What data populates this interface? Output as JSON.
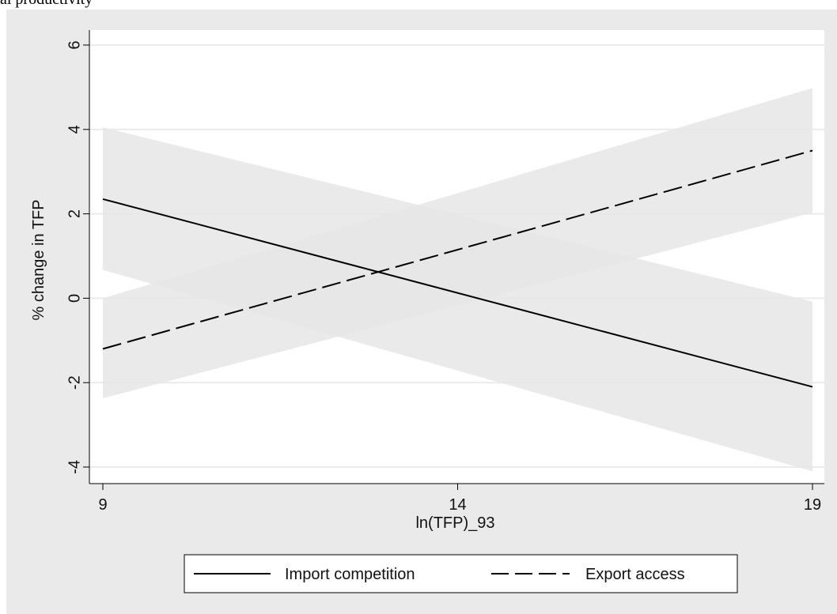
{
  "caption": "al productivity",
  "chart_data": {
    "type": "line",
    "xlabel": "ln(TFP)_93",
    "ylabel": "% change in TFP",
    "xlim": [
      9,
      19
    ],
    "ylim": [
      -4,
      6
    ],
    "xticks": [
      "9",
      "14",
      "19"
    ],
    "yticks": [
      "-4",
      "-2",
      "0",
      "2",
      "4",
      "6"
    ],
    "grid": true,
    "legend_position": "bottom",
    "series": [
      {
        "name": "Import competition",
        "style": "solid",
        "x": [
          9,
          19
        ],
        "values": [
          2.35,
          -2.1
        ],
        "ci_lower": [
          0.67,
          -4.1
        ],
        "ci_upper": [
          4.05,
          -0.08
        ]
      },
      {
        "name": "Export access",
        "style": "dashed",
        "x": [
          9,
          19
        ],
        "values": [
          -1.2,
          3.5
        ],
        "ci_lower": [
          -2.37,
          2.03
        ],
        "ci_upper": [
          0.0,
          4.98
        ]
      }
    ],
    "colors": {
      "line": "#000000",
      "band": "#e6e6e6",
      "plot_bg": "#ffffff",
      "outer_bg": "#eaeaea",
      "grid": "#eaeaea"
    }
  }
}
